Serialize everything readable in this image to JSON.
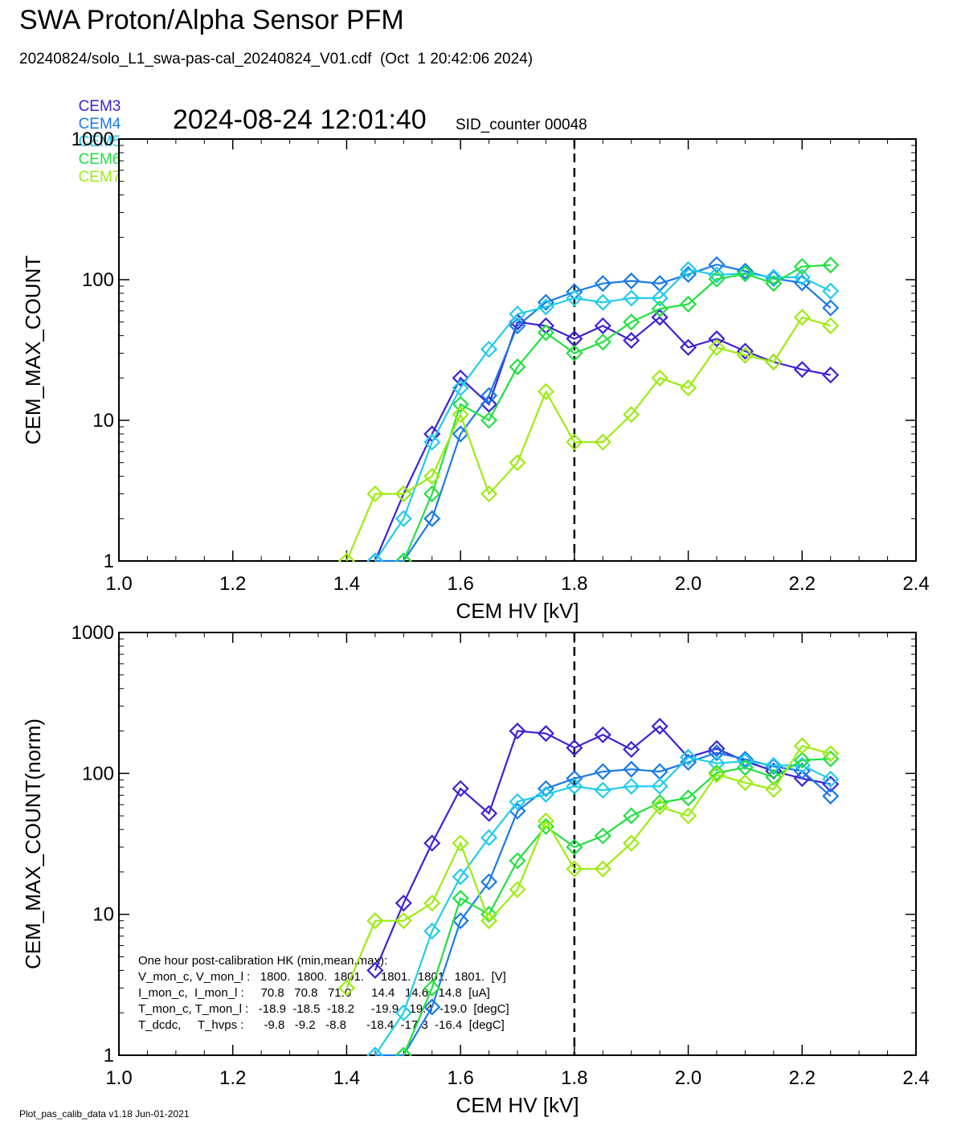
{
  "header": {
    "title": "SWA Proton/Alpha Sensor PFM",
    "file_line": "20240824/solo_L1_swa-pas-cal_20240824_V01.cdf  (Oct  1 20:42:06 2024)",
    "timestamp": "2024-08-24 12:01:40",
    "sid_counter": "SID_counter 00048"
  },
  "legend": [
    {
      "name": "CEM3",
      "color": "#3b22d6"
    },
    {
      "name": "CEM4",
      "color": "#1a7ae8"
    },
    {
      "name": "CEM5",
      "color": "#22cbee"
    },
    {
      "name": "CEM6",
      "color": "#22e040"
    },
    {
      "name": "CEM7",
      "color": "#9cec12"
    }
  ],
  "footer": "Plot_pas_calib_data v1.18 Jun-01-2021",
  "hk_box": {
    "lines": [
      "One hour post-calibration HK (min,mean,max):",
      "V_mon_c, V_mon_l :   1800.  1800.  1801.     1801.  1801.  1801.  [V]",
      "I_mon_c,  I_mon_l :     70.8   70.8   71.0      14.4   14.6   14.8  [uA]",
      "T_mon_c, T_mon_l :   -18.9  -18.5  -18.2     -19.9  -19.4  -19.0  [degC]",
      "T_dcdc,     T_hvps :      -9.8   -9.2   -8.8      -18.4  -17.3  -16.4  [degC]"
    ]
  },
  "chart_data": [
    {
      "type": "line",
      "xlabel": "CEM HV [kV]",
      "ylabel": "CEM_MAX_COUNT",
      "xlim": [
        1.0,
        2.4
      ],
      "ylim": [
        1,
        1000
      ],
      "yscale": "log",
      "xticks": [
        "1.0",
        "1.2",
        "1.4",
        "1.6",
        "1.8",
        "2.0",
        "2.2",
        "2.4"
      ],
      "yticks": [
        "1",
        "10",
        "100",
        "1000"
      ],
      "vline_x": 1.8,
      "x": [
        1.4,
        1.45,
        1.5,
        1.55,
        1.6,
        1.65,
        1.7,
        1.75,
        1.8,
        1.85,
        1.9,
        1.95,
        2.0,
        2.05,
        2.1,
        2.15,
        2.2,
        2.25
      ],
      "series": [
        {
          "name": "CEM3",
          "color": "#3b22d6",
          "values": [
            null,
            1,
            3,
            8,
            20,
            13,
            50,
            47,
            38,
            47,
            37,
            54,
            33,
            38,
            31,
            26,
            23,
            21
          ]
        },
        {
          "name": "CEM4",
          "color": "#1a7ae8",
          "values": [
            null,
            1,
            1,
            2,
            8,
            15,
            47,
            69,
            82,
            94,
            98,
            94,
            109,
            128,
            115,
            102,
            95,
            63
          ]
        },
        {
          "name": "CEM5",
          "color": "#22cbee",
          "values": [
            null,
            1,
            2,
            7,
            17,
            32,
            57,
            64,
            74,
            69,
            74,
            74,
            118,
            108,
            111,
            104,
            104,
            83
          ]
        },
        {
          "name": "CEM6",
          "color": "#22e040",
          "values": [
            null,
            null,
            1,
            3,
            13,
            10,
            24,
            42,
            30,
            36,
            50,
            62,
            67,
            101,
            110,
            94,
            124,
            127
          ]
        },
        {
          "name": "CEM7",
          "color": "#9cec12",
          "values": [
            1,
            3,
            3,
            4,
            11,
            3,
            5,
            16,
            7,
            7,
            11,
            20,
            17,
            33,
            29,
            26,
            54,
            47
          ]
        }
      ]
    },
    {
      "type": "line",
      "xlabel": "CEM HV [kV]",
      "ylabel": "CEM_MAX_COUNT(norm)",
      "xlim": [
        1.0,
        2.4
      ],
      "ylim": [
        1,
        1000
      ],
      "yscale": "log",
      "xticks": [
        "1.0",
        "1.2",
        "1.4",
        "1.6",
        "1.8",
        "2.0",
        "2.2",
        "2.4"
      ],
      "yticks": [
        "1",
        "10",
        "100",
        "1000"
      ],
      "vline_x": 1.8,
      "x": [
        1.4,
        1.45,
        1.5,
        1.55,
        1.6,
        1.65,
        1.7,
        1.75,
        1.8,
        1.85,
        1.9,
        1.95,
        2.0,
        2.05,
        2.1,
        2.15,
        2.2,
        2.25
      ],
      "series": [
        {
          "name": "CEM3",
          "color": "#3b22d6",
          "values": [
            null,
            4,
            12,
            32,
            78,
            52,
            200,
            192,
            152,
            188,
            148,
            216,
            130,
            150,
            122,
            104,
            92,
            84
          ]
        },
        {
          "name": "CEM4",
          "color": "#1a7ae8",
          "values": [
            null,
            1,
            1,
            2.2,
            9,
            17,
            54,
            78,
            92,
            103,
            107,
            103,
            120,
            140,
            126,
            112,
            104,
            69
          ]
        },
        {
          "name": "CEM5",
          "color": "#22cbee",
          "values": [
            null,
            1,
            2,
            7.6,
            18.5,
            35,
            63,
            71,
            81,
            76,
            81,
            81,
            130,
            118,
            122,
            114,
            114,
            91
          ]
        },
        {
          "name": "CEM6",
          "color": "#22e040",
          "values": [
            null,
            null,
            1,
            3,
            13,
            10,
            24,
            42,
            30,
            36,
            50,
            62,
            67,
            101,
            110,
            94,
            124,
            127
          ]
        },
        {
          "name": "CEM7",
          "color": "#9cec12",
          "values": [
            3,
            9,
            9,
            12,
            32,
            9,
            15,
            46,
            21,
            21,
            32,
            58,
            50,
            98,
            86,
            77,
            157,
            138
          ]
        }
      ]
    }
  ]
}
